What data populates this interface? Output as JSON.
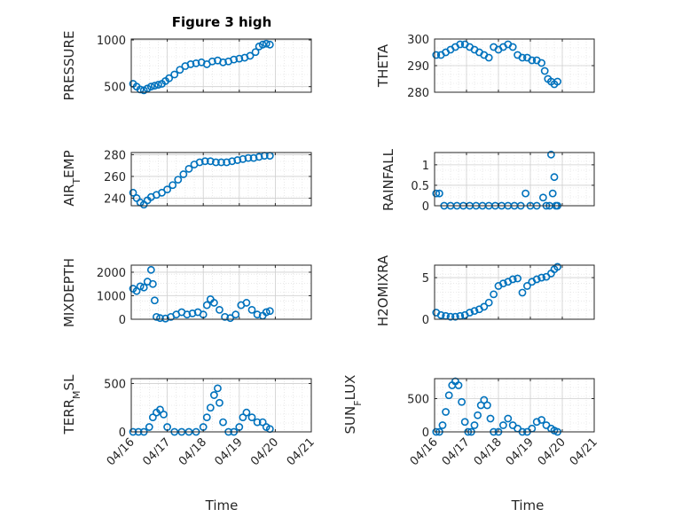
{
  "figure": {
    "title": "Figure 3 high"
  },
  "chart_data": [
    {
      "type": "scatter",
      "ylabel": "PRESSURE",
      "ylim": [
        440,
        1010
      ],
      "yticks": [
        500,
        1000
      ],
      "x": [
        0.05,
        0.15,
        0.25,
        0.35,
        0.45,
        0.55,
        0.65,
        0.75,
        0.85,
        0.95,
        1.05,
        1.2,
        1.35,
        1.5,
        1.65,
        1.8,
        1.95,
        2.1,
        2.25,
        2.4,
        2.55,
        2.7,
        2.85,
        3.0,
        3.15,
        3.3,
        3.45,
        3.55,
        3.65,
        3.75,
        3.85
      ],
      "y": [
        530,
        500,
        470,
        460,
        480,
        500,
        510,
        520,
        530,
        560,
        590,
        630,
        680,
        720,
        740,
        750,
        760,
        740,
        770,
        780,
        760,
        770,
        790,
        800,
        810,
        830,
        870,
        930,
        950,
        960,
        950
      ]
    },
    {
      "type": "scatter",
      "ylabel": "THETA",
      "ylim": [
        280,
        300
      ],
      "yticks": [
        280,
        290,
        300
      ],
      "x": [
        0.05,
        0.2,
        0.35,
        0.5,
        0.65,
        0.8,
        0.95,
        1.1,
        1.25,
        1.4,
        1.55,
        1.7,
        1.85,
        2.0,
        2.15,
        2.3,
        2.45,
        2.6,
        2.75,
        2.9,
        3.05,
        3.2,
        3.35,
        3.45,
        3.55,
        3.65,
        3.75,
        3.85
      ],
      "y": [
        294,
        294,
        295,
        296,
        297,
        298,
        298,
        297,
        296,
        295,
        294,
        293,
        297,
        296,
        297,
        298,
        297,
        294,
        293,
        293,
        292,
        292,
        291,
        288,
        285,
        284,
        283,
        284
      ]
    },
    {
      "type": "scatter",
      "ylabel": "AIR_TEMP",
      "ylim": [
        233,
        282
      ],
      "yticks": [
        240,
        260,
        280
      ],
      "x": [
        0.05,
        0.15,
        0.25,
        0.35,
        0.45,
        0.55,
        0.7,
        0.85,
        1.0,
        1.15,
        1.3,
        1.45,
        1.6,
        1.75,
        1.9,
        2.05,
        2.2,
        2.35,
        2.5,
        2.65,
        2.8,
        2.95,
        3.1,
        3.25,
        3.4,
        3.55,
        3.7,
        3.85
      ],
      "y": [
        245,
        240,
        236,
        234,
        238,
        241,
        243,
        245,
        248,
        252,
        257,
        262,
        267,
        271,
        273,
        274,
        274,
        273,
        273,
        273,
        274,
        275,
        276,
        277,
        277,
        278,
        279,
        279
      ]
    },
    {
      "type": "scatter",
      "ylabel": "RAINFALL",
      "ylim": [
        0,
        1.3
      ],
      "yticks": [
        0,
        0.5,
        1
      ],
      "x": [
        0.05,
        0.15,
        0.3,
        0.5,
        0.7,
        0.9,
        1.1,
        1.3,
        1.5,
        1.7,
        1.9,
        2.1,
        2.3,
        2.5,
        2.7,
        2.85,
        3.0,
        3.2,
        3.4,
        3.5,
        3.6,
        3.65,
        3.7,
        3.75,
        3.8,
        3.85
      ],
      "y": [
        0.3,
        0.3,
        0,
        0,
        0,
        0,
        0,
        0,
        0,
        0,
        0,
        0,
        0,
        0,
        0,
        0.3,
        0,
        0,
        0.2,
        0,
        0,
        1.25,
        0.3,
        0.7,
        0,
        0
      ]
    },
    {
      "type": "scatter",
      "ylabel": "MIXDEPTH",
      "ylim": [
        0,
        2300
      ],
      "yticks": [
        0,
        1000,
        2000
      ],
      "x": [
        0.05,
        0.15,
        0.25,
        0.35,
        0.45,
        0.55,
        0.6,
        0.65,
        0.7,
        0.8,
        0.95,
        1.1,
        1.25,
        1.4,
        1.55,
        1.7,
        1.85,
        2.0,
        2.1,
        2.2,
        2.3,
        2.45,
        2.6,
        2.75,
        2.9,
        3.05,
        3.2,
        3.35,
        3.5,
        3.65,
        3.75,
        3.85
      ],
      "y": [
        1300,
        1200,
        1400,
        1350,
        1600,
        2100,
        1500,
        800,
        100,
        50,
        30,
        100,
        200,
        300,
        200,
        250,
        300,
        200,
        600,
        850,
        700,
        400,
        100,
        50,
        200,
        600,
        700,
        400,
        200,
        150,
        300,
        350
      ]
    },
    {
      "type": "scatter",
      "ylabel": "H2OMIXRA",
      "ylim": [
        0,
        6.5
      ],
      "yticks": [
        0,
        5
      ],
      "x": [
        0.05,
        0.2,
        0.35,
        0.5,
        0.65,
        0.8,
        0.95,
        1.1,
        1.25,
        1.4,
        1.55,
        1.7,
        1.85,
        2.0,
        2.15,
        2.3,
        2.45,
        2.6,
        2.75,
        2.9,
        3.05,
        3.2,
        3.35,
        3.5,
        3.65,
        3.75,
        3.85
      ],
      "y": [
        0.8,
        0.5,
        0.4,
        0.3,
        0.3,
        0.4,
        0.5,
        0.8,
        1.0,
        1.2,
        1.5,
        2.0,
        3.0,
        4.0,
        4.3,
        4.5,
        4.8,
        4.9,
        3.2,
        4.0,
        4.5,
        4.8,
        5.0,
        5.1,
        5.5,
        6.0,
        6.3
      ]
    },
    {
      "type": "scatter",
      "ylabel": "TERR_MSL",
      "ylim": [
        0,
        550
      ],
      "yticks": [
        0,
        500
      ],
      "x": [
        0.05,
        0.2,
        0.35,
        0.5,
        0.6,
        0.7,
        0.8,
        0.9,
        1.0,
        1.2,
        1.4,
        1.6,
        1.8,
        2.0,
        2.1,
        2.2,
        2.3,
        2.4,
        2.45,
        2.55,
        2.7,
        2.85,
        3.0,
        3.1,
        3.2,
        3.35,
        3.5,
        3.65,
        3.75,
        3.85
      ],
      "y": [
        0,
        0,
        0,
        50,
        150,
        200,
        230,
        180,
        50,
        0,
        0,
        0,
        0,
        50,
        150,
        250,
        380,
        450,
        300,
        100,
        0,
        0,
        50,
        150,
        200,
        150,
        100,
        100,
        50,
        30
      ]
    },
    {
      "type": "scatter",
      "ylabel": "SUN_FLUX",
      "ylim": [
        0,
        800
      ],
      "yticks": [
        0,
        500
      ],
      "x": [
        0.05,
        0.15,
        0.25,
        0.35,
        0.45,
        0.55,
        0.65,
        0.75,
        0.85,
        0.95,
        1.05,
        1.15,
        1.25,
        1.35,
        1.45,
        1.55,
        1.65,
        1.75,
        1.85,
        2.0,
        2.15,
        2.3,
        2.45,
        2.6,
        2.75,
        2.9,
        3.05,
        3.2,
        3.35,
        3.5,
        3.65,
        3.75,
        3.85
      ],
      "y": [
        0,
        0,
        100,
        300,
        550,
        700,
        760,
        700,
        450,
        150,
        0,
        0,
        100,
        250,
        400,
        480,
        400,
        200,
        0,
        0,
        100,
        200,
        100,
        50,
        0,
        0,
        50,
        150,
        180,
        100,
        50,
        20,
        0
      ]
    }
  ],
  "x_axis": {
    "label": "Time",
    "xlim": [
      0,
      5
    ],
    "ticks": [
      0,
      1,
      2,
      3,
      4,
      5
    ],
    "tick_labels": [
      "04/16",
      "04/17",
      "04/18",
      "04/19",
      "04/20",
      "04/21"
    ]
  },
  "colors": {
    "marker": "#0072BD",
    "axis": "#262626",
    "grid": "#d9d9d9"
  }
}
